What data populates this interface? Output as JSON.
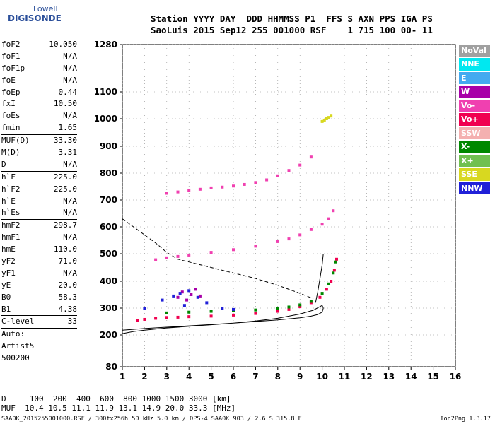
{
  "logo": {
    "line1": "Lowell",
    "line2": "DIGISONDE"
  },
  "header": {
    "line1": "Station YYYY DAY  DDD HHMMSS P1  FFS S AXN PPS IGA PS",
    "line2": "SaoLuis 2015 Sep12 255 001000 RSF    1 715 100 00- 11"
  },
  "params": [
    {
      "label": "foF2",
      "value": "10.050"
    },
    {
      "label": "foF1",
      "value": "N/A"
    },
    {
      "label": "foF1p",
      "value": "N/A"
    },
    {
      "label": "foE",
      "value": "N/A"
    },
    {
      "label": "foEp",
      "value": "0.44"
    },
    {
      "label": "fxI",
      "value": "10.50"
    },
    {
      "label": "foEs",
      "value": "N/A"
    },
    {
      "label": "fmin",
      "value": "1.65",
      "sep_after": true
    },
    {
      "label": "MUF(D)",
      "value": "33.30"
    },
    {
      "label": "M(D)",
      "value": "3.31"
    },
    {
      "label": "D",
      "value": "N/A",
      "sep_after": true
    },
    {
      "label": "h`F",
      "value": "225.0"
    },
    {
      "label": "h`F2",
      "value": "225.0"
    },
    {
      "label": "h`E",
      "value": "N/A"
    },
    {
      "label": "h`Es",
      "value": "N/A",
      "sep_after": true
    },
    {
      "label": "hmF2",
      "value": "298.7"
    },
    {
      "label": "hmF1",
      "value": "N/A"
    },
    {
      "label": "hmE",
      "value": "110.0"
    },
    {
      "label": "yF2",
      "value": "71.0"
    },
    {
      "label": "yF1",
      "value": "N/A"
    },
    {
      "label": "yE",
      "value": "20.0"
    },
    {
      "label": "B0",
      "value": "58.3"
    },
    {
      "label": "B1",
      "value": "4.38",
      "sep_after": true
    },
    {
      "label": "C-level",
      "value": "33",
      "sep_after": true
    }
  ],
  "autoscaling": [
    "Auto:",
    "Artist5",
    "500200"
  ],
  "legend": [
    {
      "label": "NoVal",
      "color": "#a0a0a0"
    },
    {
      "label": "NNE",
      "color": "#00e8f0"
    },
    {
      "label": "E",
      "color": "#44aaf0"
    },
    {
      "label": "W",
      "color": "#a800a8"
    },
    {
      "label": "Vo-",
      "color": "#f040b0"
    },
    {
      "label": "Vo+",
      "color": "#f00050"
    },
    {
      "label": "SSW",
      "color": "#f4b0b0"
    },
    {
      "label": "X-",
      "color": "#008800"
    },
    {
      "label": "X+",
      "color": "#70c050"
    },
    {
      "label": "SSE",
      "color": "#d8d820"
    },
    {
      "label": "NNW",
      "color": "#2020d8"
    }
  ],
  "footer": {
    "distance_line": "D     100  200  400  600  800 1000 1500 3000 [km]",
    "muf_line": "MUF  10.4 10.5 11.1 11.9 13.1 14.9 20.0 33.3 [MHz]",
    "file_line": "SAA0K_2015255001000.RSF / 300fx256h 50 kHz 5.0 km / DPS-4 SAA0K 903 / 2.6 S 315.8 E",
    "version": "Ion2Png 1.3.17"
  },
  "chart_data": {
    "type": "scatter",
    "title": "",
    "xlabel": "",
    "ylabel": "",
    "xlim": [
      1,
      16
    ],
    "x_ticks": [
      1,
      2,
      3,
      4,
      5,
      6,
      7,
      8,
      9,
      10,
      11,
      12,
      13,
      14,
      15,
      16
    ],
    "y_ticks": [
      80,
      200,
      300,
      400,
      500,
      600,
      700,
      800,
      900,
      1000,
      1100,
      1280
    ],
    "grid": true,
    "series": [
      {
        "name": "Vo+",
        "color": "#f00050",
        "x": [
          1.7,
          2.0,
          2.5,
          3.0,
          3.5,
          4.0,
          5.0,
          6.0,
          7.0,
          8.0,
          8.5,
          9.0,
          9.5,
          9.9,
          10.2,
          10.4,
          10.55,
          10.65
        ],
        "y": [
          253,
          258,
          262,
          265,
          266,
          268,
          270,
          274,
          280,
          288,
          295,
          305,
          320,
          340,
          370,
          400,
          440,
          480
        ]
      },
      {
        "name": "Vo-",
        "color": "#f040b0",
        "x": [
          2.5,
          3.0,
          3.5,
          4.0,
          5.0,
          6.0,
          7.0,
          8.0,
          8.5,
          9.0,
          9.5,
          10.0,
          10.3,
          10.5
        ],
        "y": [
          478,
          485,
          490,
          495,
          505,
          515,
          528,
          545,
          555,
          570,
          590,
          610,
          630,
          660
        ]
      },
      {
        "name": "Vo- (upper echo)",
        "color": "#f040b0",
        "x": [
          3.0,
          3.5,
          4.0,
          4.5,
          5.0,
          5.5,
          6.0,
          6.5,
          7.0,
          7.5,
          8.0,
          8.5,
          9.0,
          9.5
        ],
        "y": [
          725,
          730,
          735,
          740,
          745,
          748,
          752,
          758,
          765,
          775,
          790,
          810,
          830,
          860
        ]
      },
      {
        "name": "X-",
        "color": "#008800",
        "x": [
          3.0,
          4.0,
          5.0,
          6.0,
          7.0,
          8.0,
          8.5,
          9.0,
          9.5,
          10.0,
          10.3,
          10.5,
          10.6
        ],
        "y": [
          282,
          285,
          288,
          290,
          293,
          298,
          304,
          312,
          325,
          355,
          390,
          430,
          470
        ]
      },
      {
        "name": "W",
        "color": "#a800a8",
        "x": [
          3.5,
          3.7,
          3.9,
          4.1,
          4.3,
          4.5
        ],
        "y": [
          340,
          360,
          330,
          350,
          370,
          345
        ]
      },
      {
        "name": "NNW",
        "color": "#2020d8",
        "x": [
          2.0,
          2.8,
          3.3,
          3.6,
          3.8,
          4.0,
          4.4,
          4.8,
          5.5,
          6.0
        ],
        "y": [
          300,
          330,
          345,
          355,
          310,
          365,
          340,
          320,
          300,
          295
        ]
      },
      {
        "name": "SSE",
        "color": "#d8d820",
        "x": [
          10.0,
          10.1,
          10.2,
          10.3,
          10.4
        ],
        "y": [
          990,
          995,
          1000,
          1005,
          1010
        ]
      }
    ],
    "model_curves": [
      {
        "name": "profile",
        "x": [
          1.0,
          1.5,
          2.0,
          3.0,
          4.0,
          5.0,
          6.0,
          7.0,
          8.0,
          9.0,
          9.6,
          10.0,
          10.05,
          10.0,
          9.8,
          9.5,
          9.0,
          8.0,
          7.0,
          6.0,
          5.0,
          4.0,
          3.0,
          2.0,
          1.0
        ],
        "y": [
          205,
          213,
          218,
          226,
          232,
          238,
          244,
          252,
          262,
          278,
          292,
          310,
          300,
          285,
          276,
          270,
          264,
          256,
          250,
          244,
          239,
          234,
          229,
          224,
          218
        ]
      },
      {
        "name": "profile-vertical",
        "x": [
          9.7,
          9.8,
          9.9,
          10.0,
          10.05
        ],
        "y": [
          320,
          360,
          410,
          460,
          500
        ]
      },
      {
        "name": "dashed",
        "dashed": true,
        "x": [
          1.0,
          1.5,
          2.0,
          2.5,
          3.0,
          3.5,
          4.0,
          5.0,
          6.0,
          7.0,
          8.0,
          9.0,
          9.6
        ],
        "y": [
          630,
          600,
          570,
          540,
          505,
          480,
          470,
          450,
          430,
          410,
          385,
          355,
          335
        ]
      }
    ]
  }
}
